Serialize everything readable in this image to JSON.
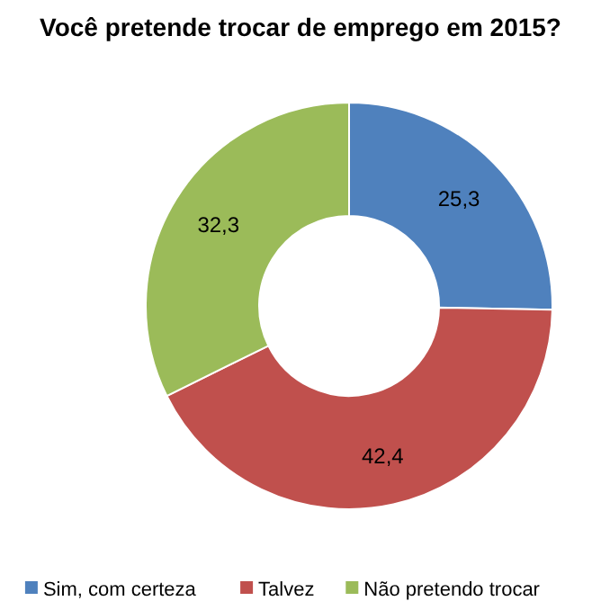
{
  "chart_data": {
    "type": "donut",
    "title": "Você pretende trocar de emprego em 2015?",
    "categories": [
      "Sim, com certeza",
      "Talvez",
      "Não pretendo trocar"
    ],
    "values": [
      25.3,
      42.4,
      32.3
    ],
    "colors": [
      "#4f81bd",
      "#c0504d",
      "#9bbb59"
    ],
    "value_labels": [
      "25,3",
      "42,4",
      "32,3"
    ],
    "legend": "bottom"
  }
}
